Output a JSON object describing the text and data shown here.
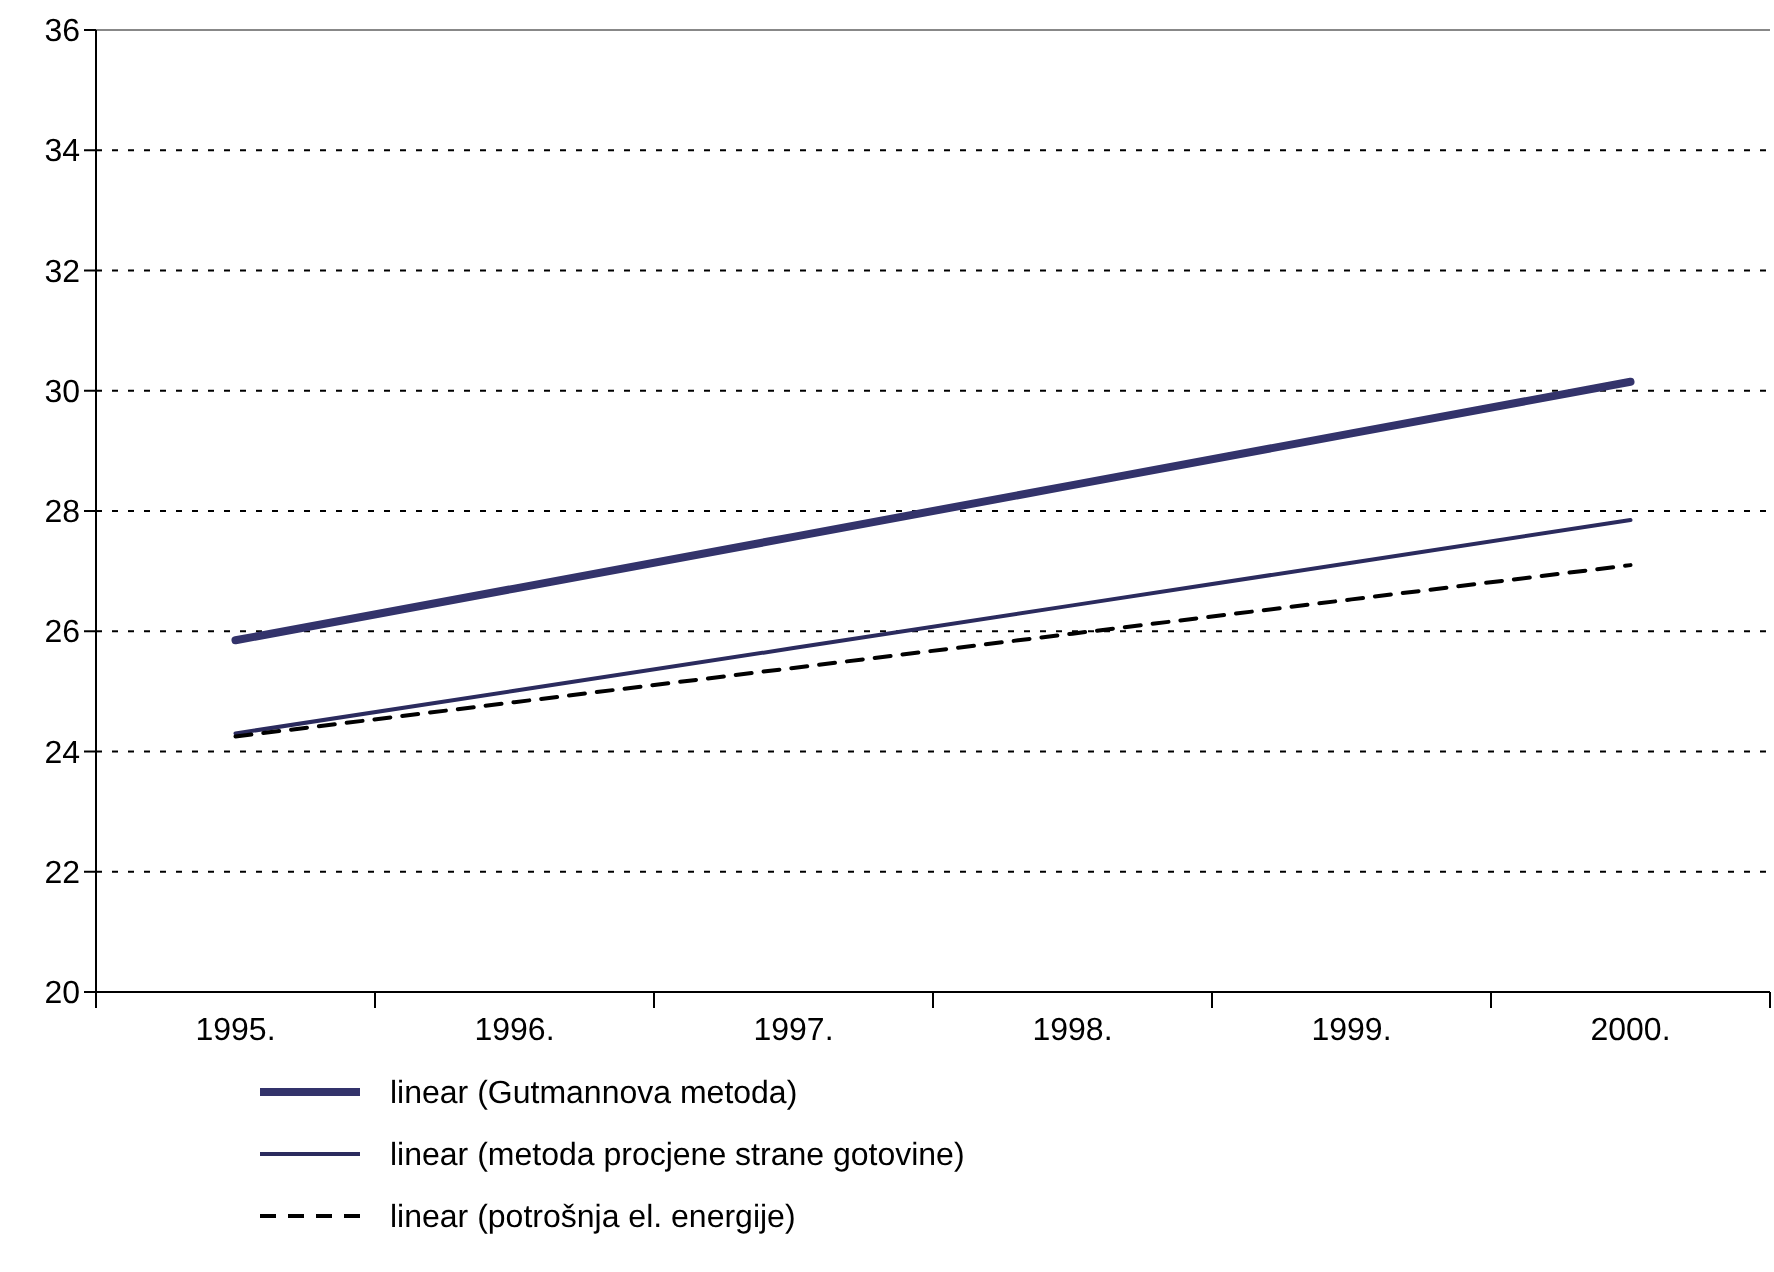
{
  "chart_data": {
    "type": "line",
    "categories": [
      "1995.",
      "1996.",
      "1997.",
      "1998.",
      "1999.",
      "2000."
    ],
    "series": [
      {
        "name": "linear (Gutmannova metoda)",
        "color": "#33336b",
        "values": [
          25.85,
          26.71,
          27.57,
          28.43,
          29.29,
          30.15
        ]
      },
      {
        "name": "linear (metoda procjene strane gotovine)",
        "color": "#2b2b5e",
        "values": [
          24.3,
          25.01,
          25.72,
          26.43,
          27.14,
          27.85
        ]
      },
      {
        "name": "linear (potrošnja el. energije)",
        "color": "#000000",
        "line_style": "dashed",
        "values": [
          24.25,
          24.82,
          25.39,
          25.96,
          26.53,
          27.1
        ]
      }
    ],
    "ylim": [
      20,
      36
    ],
    "yticks": [
      20,
      22,
      24,
      26,
      28,
      30,
      32,
      34,
      36
    ],
    "grid": "y",
    "legend": "bottom",
    "marker": "none"
  }
}
